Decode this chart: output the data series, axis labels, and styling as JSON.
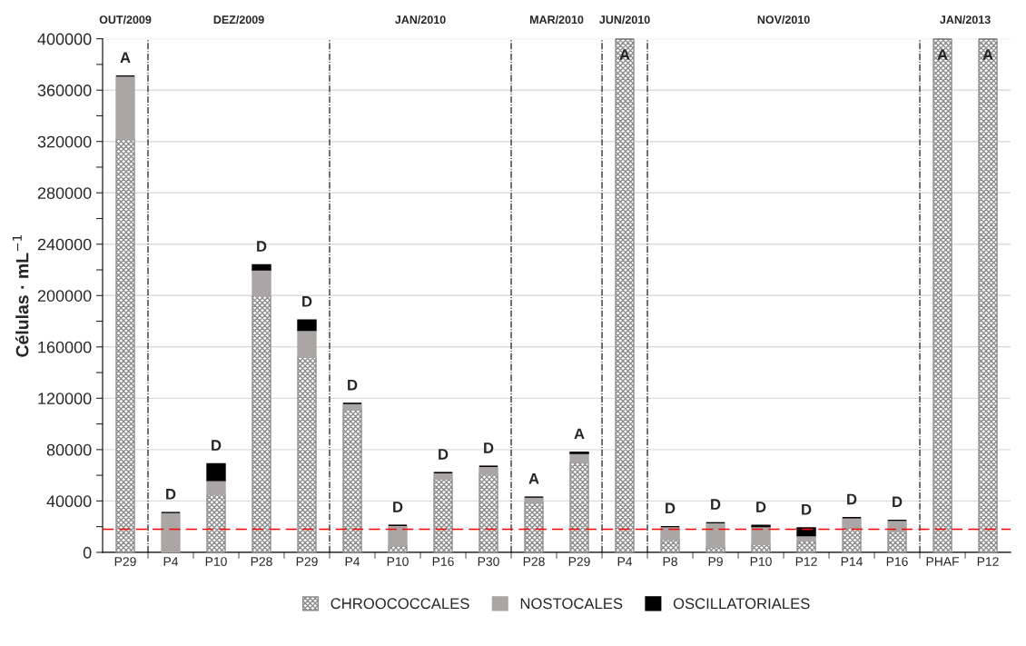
{
  "chart_data": {
    "type": "bar",
    "stacked": true,
    "ylabel": "Células · mL$^{−1}$",
    "categories": [
      "P29",
      "P4",
      "P10",
      "P28",
      "P29",
      "P4",
      "P10",
      "P16",
      "P30",
      "P28",
      "P29",
      "P4",
      "P8",
      "P9",
      "P10",
      "P12",
      "P14",
      "P16",
      "PHAF",
      "P12"
    ],
    "series": [
      {
        "name": "CHROOCOCCALES",
        "color": "#8c8c8c",
        "values": [
          322000,
          0,
          45000,
          200000,
          152000,
          111000,
          5000,
          57000,
          61000,
          39000,
          70000,
          400000,
          10000,
          4000,
          6000,
          9000,
          19000,
          16000,
          400000,
          400000
        ]
      },
      {
        "name": "NOSTOCALES",
        "color": "#aaa6a6",
        "values": [
          49000,
          31000,
          11000,
          20000,
          21000,
          5000,
          16000,
          5000,
          6000,
          4000,
          7000,
          0,
          10000,
          19000,
          14000,
          4000,
          8000,
          9000,
          0,
          0
        ]
      },
      {
        "name": "OSCILLATORIALES",
        "color": "#000000",
        "values": [
          0,
          0,
          13000,
          4000,
          8000,
          0,
          0,
          0,
          0,
          0,
          1000,
          0,
          0,
          0,
          1000,
          6000,
          0,
          0,
          0,
          0
        ]
      }
    ],
    "value_labels": [
      "A",
      "D",
      "D",
      "D",
      "D",
      "D",
      "D",
      "D",
      "D",
      "A",
      "A",
      "A",
      "D",
      "D",
      "D",
      "D",
      "D",
      "D",
      "A",
      "A"
    ],
    "ylim": [
      0,
      400000
    ],
    "yticks": [
      0,
      {
        "value": 20000,
        "label": null
      },
      40000,
      {
        "value": 60000,
        "label": null
      },
      80000,
      {
        "value": 100000,
        "label": null
      },
      120000,
      {
        "value": 140000,
        "label": null
      },
      160000,
      {
        "value": 180000,
        "label": null
      },
      200000,
      {
        "value": 220000,
        "label": null
      },
      240000,
      {
        "value": 260000,
        "label": null
      },
      280000,
      {
        "value": 300000,
        "label": null
      },
      320000,
      {
        "value": 340000,
        "label": null
      },
      360000,
      {
        "value": 380000,
        "label": null
      },
      400000
    ],
    "grid": "y",
    "legend": "bottom",
    "ref_lines": [
      {
        "axis": "y",
        "value": 18000,
        "color": "#ff0000",
        "line_style": "dashed"
      }
    ],
    "annotations": [
      "OUT/2009",
      "DEZ/2009",
      "JAN/2010",
      "MAR/2010",
      "JUN/2010",
      "NOV/2010",
      "JAN/2013"
    ]
  }
}
